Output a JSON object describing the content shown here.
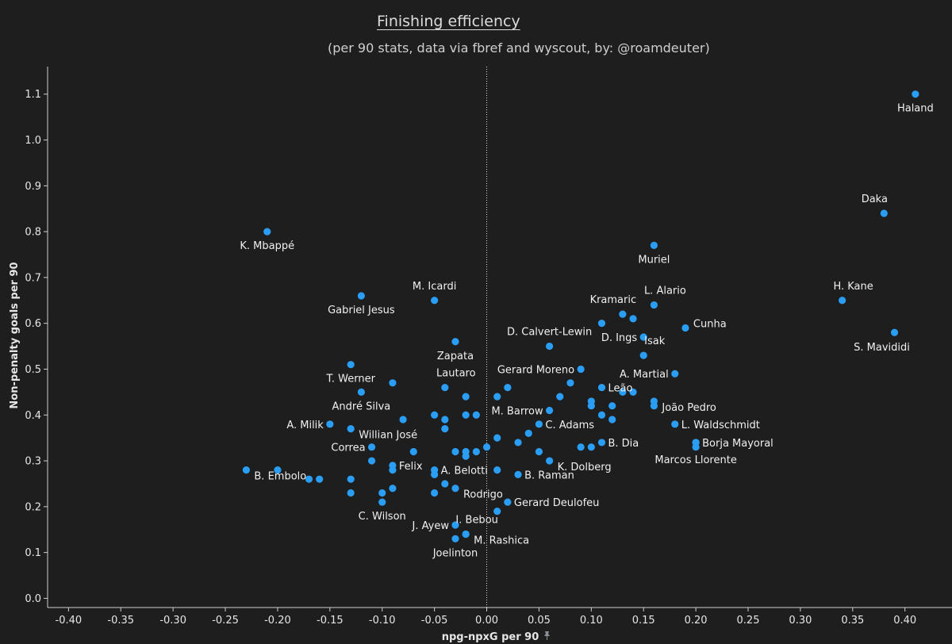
{
  "title": "Finishing efficiency",
  "subtitle": "(per 90 stats, data via fbref and wyscout, by: @roamdeuter)",
  "colors": {
    "background": "#1e1e1e",
    "point": "#2a9df4",
    "text": "#e8e8e8"
  },
  "chart_data": {
    "type": "scatter",
    "xlabel": "npg-npxG per 90",
    "ylabel": "Non-penalty goals per 90",
    "xlim": [
      -0.42,
      0.445
    ],
    "ylim": [
      -0.02,
      1.16
    ],
    "xticks": [
      -0.4,
      -0.35,
      -0.3,
      -0.25,
      -0.2,
      -0.15,
      -0.1,
      -0.05,
      0.0,
      0.05,
      0.1,
      0.15,
      0.2,
      0.25,
      0.3,
      0.35,
      0.4
    ],
    "xtick_labels": [
      "-0.40",
      "-0.35",
      "-0.30",
      "-0.25",
      "-0.20",
      "-0.15",
      "-0.10",
      "-0.05",
      "0.00",
      "0.05",
      "0.10",
      "0.15",
      "0.20",
      "0.25",
      "0.30",
      "0.35",
      "0.40"
    ],
    "yticks": [
      0.0,
      0.1,
      0.2,
      0.3,
      0.4,
      0.5,
      0.6,
      0.7,
      0.8,
      0.9,
      1.0,
      1.1
    ],
    "ytick_labels": [
      "0.0",
      "0.1",
      "0.2",
      "0.3",
      "0.4",
      "0.5",
      "0.6",
      "0.7",
      "0.8",
      "0.9",
      "1.0",
      "1.1"
    ],
    "reference_line_x": 0.0,
    "grid": false,
    "points": [
      {
        "label": "Haland",
        "x": 0.41,
        "y": 1.1,
        "pos": "below"
      },
      {
        "label": "Daka",
        "x": 0.38,
        "y": 0.84,
        "pos": "above-left"
      },
      {
        "label": "H. Kane",
        "x": 0.34,
        "y": 0.65,
        "pos": "above-right"
      },
      {
        "label": "S. Mavididi",
        "x": 0.39,
        "y": 0.58,
        "pos": "below-left"
      },
      {
        "label": "K. Mbappé",
        "x": -0.21,
        "y": 0.8,
        "pos": "below"
      },
      {
        "label": "Muriel",
        "x": 0.16,
        "y": 0.77,
        "pos": "below"
      },
      {
        "label": "Gabriel Jesus",
        "x": -0.12,
        "y": 0.66,
        "pos": "below"
      },
      {
        "label": "M. Icardi",
        "x": -0.05,
        "y": 0.65,
        "pos": "above"
      },
      {
        "label": "L. Alario",
        "x": 0.16,
        "y": 0.64,
        "pos": "above-right"
      },
      {
        "label": "Kramaric",
        "x": 0.13,
        "y": 0.62,
        "pos": "above-left"
      },
      {
        "label": "",
        "x": 0.14,
        "y": 0.61,
        "pos": "none"
      },
      {
        "label": "Cunha",
        "x": 0.19,
        "y": 0.59,
        "pos": "right-up"
      },
      {
        "label": "",
        "x": 0.11,
        "y": 0.6,
        "pos": "none"
      },
      {
        "label": "D. Ings",
        "x": 0.15,
        "y": 0.57,
        "pos": "left"
      },
      {
        "label": "Zapata",
        "x": -0.03,
        "y": 0.56,
        "pos": "below"
      },
      {
        "label": "D. Calvert-Lewin",
        "x": 0.06,
        "y": 0.55,
        "pos": "above"
      },
      {
        "label": "Isak",
        "x": 0.15,
        "y": 0.53,
        "pos": "above-right"
      },
      {
        "label": "T. Werner",
        "x": -0.13,
        "y": 0.51,
        "pos": "below"
      },
      {
        "label": "Gerard Moreno",
        "x": 0.09,
        "y": 0.5,
        "pos": "left"
      },
      {
        "label": "A. Martial",
        "x": 0.18,
        "y": 0.49,
        "pos": "left"
      },
      {
        "label": "",
        "x": -0.09,
        "y": 0.47,
        "pos": "none"
      },
      {
        "label": "",
        "x": 0.08,
        "y": 0.47,
        "pos": "none"
      },
      {
        "label": "Lautaro",
        "x": -0.04,
        "y": 0.46,
        "pos": "above-right"
      },
      {
        "label": "",
        "x": 0.02,
        "y": 0.46,
        "pos": "none"
      },
      {
        "label": "Leão",
        "x": 0.11,
        "y": 0.46,
        "pos": "right"
      },
      {
        "label": "André Silva",
        "x": -0.12,
        "y": 0.45,
        "pos": "below"
      },
      {
        "label": "",
        "x": 0.13,
        "y": 0.45,
        "pos": "none"
      },
      {
        "label": "",
        "x": 0.14,
        "y": 0.45,
        "pos": "none"
      },
      {
        "label": "",
        "x": -0.02,
        "y": 0.44,
        "pos": "none"
      },
      {
        "label": "",
        "x": 0.01,
        "y": 0.44,
        "pos": "none"
      },
      {
        "label": "",
        "x": 0.07,
        "y": 0.44,
        "pos": "none"
      },
      {
        "label": "",
        "x": 0.1,
        "y": 0.43,
        "pos": "none"
      },
      {
        "label": "João Pedro",
        "x": 0.16,
        "y": 0.43,
        "pos": "right-down"
      },
      {
        "label": "",
        "x": 0.1,
        "y": 0.42,
        "pos": "none"
      },
      {
        "label": "",
        "x": 0.12,
        "y": 0.42,
        "pos": "none"
      },
      {
        "label": "",
        "x": 0.16,
        "y": 0.42,
        "pos": "none"
      },
      {
        "label": "M. Barrow",
        "x": 0.06,
        "y": 0.41,
        "pos": "left"
      },
      {
        "label": "",
        "x": -0.05,
        "y": 0.4,
        "pos": "none"
      },
      {
        "label": "",
        "x": -0.02,
        "y": 0.4,
        "pos": "none"
      },
      {
        "label": "",
        "x": -0.01,
        "y": 0.4,
        "pos": "none"
      },
      {
        "label": "",
        "x": 0.11,
        "y": 0.4,
        "pos": "none"
      },
      {
        "label": "",
        "x": -0.08,
        "y": 0.39,
        "pos": "none"
      },
      {
        "label": "",
        "x": -0.04,
        "y": 0.39,
        "pos": "none"
      },
      {
        "label": "",
        "x": 0.12,
        "y": 0.39,
        "pos": "none"
      },
      {
        "label": "A. Milik",
        "x": -0.15,
        "y": 0.38,
        "pos": "left"
      },
      {
        "label": "C. Adams",
        "x": 0.05,
        "y": 0.38,
        "pos": "right"
      },
      {
        "label": "L. Waldschmidt",
        "x": 0.18,
        "y": 0.38,
        "pos": "right"
      },
      {
        "label": "Willian José",
        "x": -0.13,
        "y": 0.37,
        "pos": "right-down"
      },
      {
        "label": "",
        "x": -0.04,
        "y": 0.37,
        "pos": "none"
      },
      {
        "label": "",
        "x": 0.04,
        "y": 0.36,
        "pos": "none"
      },
      {
        "label": "",
        "x": 0.01,
        "y": 0.35,
        "pos": "none"
      },
      {
        "label": "",
        "x": 0.03,
        "y": 0.34,
        "pos": "none"
      },
      {
        "label": "B. Dia",
        "x": 0.11,
        "y": 0.34,
        "pos": "right"
      },
      {
        "label": "Borja Mayoral",
        "x": 0.2,
        "y": 0.34,
        "pos": "right"
      },
      {
        "label": "Correa",
        "x": -0.11,
        "y": 0.33,
        "pos": "left"
      },
      {
        "label": "",
        "x": 0.0,
        "y": 0.33,
        "pos": "none"
      },
      {
        "label": "",
        "x": 0.09,
        "y": 0.33,
        "pos": "none"
      },
      {
        "label": "",
        "x": 0.1,
        "y": 0.33,
        "pos": "none"
      },
      {
        "label": "",
        "x": 0.2,
        "y": 0.33,
        "pos": "none"
      },
      {
        "label": "",
        "x": -0.07,
        "y": 0.32,
        "pos": "none"
      },
      {
        "label": "",
        "x": -0.03,
        "y": 0.32,
        "pos": "none"
      },
      {
        "label": "",
        "x": -0.02,
        "y": 0.32,
        "pos": "none"
      },
      {
        "label": "",
        "x": -0.01,
        "y": 0.32,
        "pos": "none"
      },
      {
        "label": "",
        "x": 0.05,
        "y": 0.32,
        "pos": "none"
      },
      {
        "label": "",
        "x": -0.02,
        "y": 0.31,
        "pos": "none"
      },
      {
        "label": "",
        "x": -0.11,
        "y": 0.3,
        "pos": "none"
      },
      {
        "label": "K. Dolberg",
        "x": 0.06,
        "y": 0.3,
        "pos": "right-down"
      },
      {
        "label": "Felix",
        "x": -0.09,
        "y": 0.29,
        "pos": "right"
      },
      {
        "label": "",
        "x": -0.09,
        "y": 0.28,
        "pos": "none"
      },
      {
        "label": "A. Belotti",
        "x": -0.05,
        "y": 0.28,
        "pos": "right"
      },
      {
        "label": "",
        "x": 0.01,
        "y": 0.28,
        "pos": "none"
      },
      {
        "label": "Marcos Llorente",
        "x": 0.2,
        "y": 0.34,
        "pos": "below-far"
      },
      {
        "label": "B. Embolo",
        "x": -0.23,
        "y": 0.28,
        "pos": "right-down"
      },
      {
        "label": "",
        "x": -0.2,
        "y": 0.28,
        "pos": "none"
      },
      {
        "label": "",
        "x": -0.05,
        "y": 0.27,
        "pos": "none"
      },
      {
        "label": "B. Raman",
        "x": 0.03,
        "y": 0.27,
        "pos": "right"
      },
      {
        "label": "",
        "x": -0.17,
        "y": 0.26,
        "pos": "none"
      },
      {
        "label": "",
        "x": -0.16,
        "y": 0.26,
        "pos": "none"
      },
      {
        "label": "",
        "x": -0.13,
        "y": 0.26,
        "pos": "none"
      },
      {
        "label": "",
        "x": -0.04,
        "y": 0.25,
        "pos": "none"
      },
      {
        "label": "Rodrigo",
        "x": -0.03,
        "y": 0.24,
        "pos": "right-down"
      },
      {
        "label": "",
        "x": -0.09,
        "y": 0.24,
        "pos": "none"
      },
      {
        "label": "",
        "x": -0.13,
        "y": 0.23,
        "pos": "none"
      },
      {
        "label": "",
        "x": -0.1,
        "y": 0.23,
        "pos": "none"
      },
      {
        "label": "",
        "x": -0.05,
        "y": 0.23,
        "pos": "none"
      },
      {
        "label": "C. Wilson",
        "x": -0.1,
        "y": 0.21,
        "pos": "below"
      },
      {
        "label": "Gerard Deulofeu",
        "x": 0.02,
        "y": 0.21,
        "pos": "right"
      },
      {
        "label": "",
        "x": 0.01,
        "y": 0.19,
        "pos": "none"
      },
      {
        "label": "J. Ayew",
        "x": -0.03,
        "y": 0.16,
        "pos": "left"
      },
      {
        "label": "I. Bebou",
        "x": -0.02,
        "y": 0.14,
        "pos": "above-right"
      },
      {
        "label": "M. Rashica",
        "x": -0.02,
        "y": 0.14,
        "pos": "right-down"
      },
      {
        "label": "Joelinton",
        "x": -0.03,
        "y": 0.13,
        "pos": "below"
      }
    ]
  }
}
